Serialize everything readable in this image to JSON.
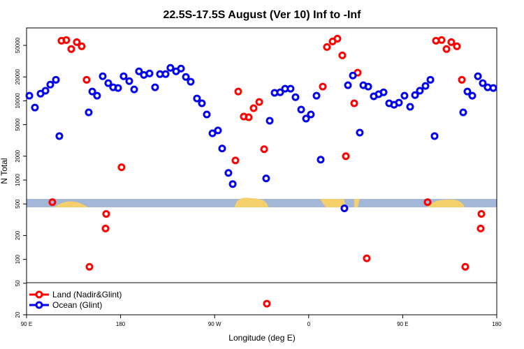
{
  "chart_data": {
    "type": "scatter",
    "title": "22.5S-17.5S August (Ver 10)   Inf to -Inf",
    "x_label": "Longitude (deg E)",
    "y_label": "N Total",
    "log_y": true,
    "legend_position": "bottom-left",
    "xlim": [
      90,
      540
    ],
    "xticks": [
      {
        "value": 90,
        "label": "90 E"
      },
      180,
      {
        "value": 270,
        "label": "90 W"
      },
      {
        "value": 360,
        "label": "0"
      },
      {
        "value": 450,
        "label": "90 E"
      },
      {
        "value": 540,
        "label": "180"
      }
    ],
    "ylim": [
      20,
      83000
    ],
    "yticks": [
      20,
      50,
      100,
      200,
      500,
      1000,
      2000,
      5000,
      10000,
      20000,
      50000
    ],
    "series": [
      {
        "name": "Land (Nadir&Glint)",
        "color": "#ff0000",
        "x": [
          114.7,
          123.4,
          128.1,
          132.8,
          138.1,
          142.8,
          147.5,
          150.2,
          165.6,
          166.2,
          180.9,
          289.9,
          292.6,
          297.9,
          302.6,
          307.3,
          312.7,
          317.4,
          320.0,
          373.5,
          377.5,
          382.9,
          387.5,
          392.2,
          395.6,
          403.6,
          406.9,
          415.6,
          473.8,
          481.8,
          487.2,
          491.9,
          496.5,
          501.9,
          506.6,
          509.9,
          524.6,
          525.3
        ],
        "values": [
          527,
          57200,
          58300,
          44900,
          54900,
          48600,
          18400,
          80.6,
          245,
          374,
          1450,
          1770,
          13100,
          6320,
          6200,
          8060,
          9660,
          2450,
          27.6,
          15100,
          47700,
          56000,
          60700,
          37400,
          2000,
          9290,
          22600,
          103,
          527,
          57200,
          58300,
          44900,
          54900,
          48600,
          18400,
          80.6,
          245,
          374
        ]
      },
      {
        "name": "Ocean (Glint)",
        "color": "#0000ee",
        "x": [
          92.7,
          98.0,
          103.4,
          108.1,
          112.7,
          118.1,
          121.4,
          149.5,
          152.9,
          157.5,
          162.9,
          168.2,
          172.9,
          177.6,
          182.9,
          188.3,
          193.0,
          197.6,
          202.3,
          207.7,
          213.0,
          217.7,
          223.1,
          227.7,
          233.1,
          237.8,
          242.5,
          247.1,
          253.1,
          257.8,
          262.5,
          267.9,
          273.2,
          277.2,
          283.2,
          287.3,
          319.3,
          322.7,
          327.4,
          332.7,
          337.4,
          342.7,
          347.4,
          352.8,
          357.5,
          362.1,
          367.5,
          371.5,
          394.2,
          397.6,
          402.3,
          408.9,
          412.3,
          417.0,
          422.3,
          427.0,
          431.7,
          437.0,
          441.7,
          446.4,
          451.7,
          457.1,
          461.8,
          466.4,
          471.8,
          476.5,
          480.5,
          507.9,
          511.9,
          516.6,
          522.0,
          526.6,
          531.3,
          536.7
        ],
        "values": [
          11600,
          8220,
          12300,
          13400,
          16000,
          18400,
          3590,
          7140,
          13100,
          11600,
          20400,
          16700,
          14800,
          14500,
          20400,
          17700,
          13900,
          23500,
          21200,
          22100,
          14800,
          21700,
          21700,
          26000,
          23500,
          25500,
          20000,
          17400,
          10700,
          9290,
          6720,
          3890,
          4230,
          2500,
          1230,
          891,
          1050,
          5600,
          12600,
          12800,
          14200,
          14200,
          11100,
          7740,
          5960,
          6720,
          11600,
          1810,
          440,
          15700,
          20800,
          3970,
          15700,
          15100,
          11400,
          12100,
          12800,
          9290,
          8910,
          9470,
          11600,
          8400,
          11800,
          13400,
          15400,
          18400,
          3590,
          7140,
          13100,
          11600,
          20400,
          16700,
          14800,
          14500
        ]
      }
    ]
  }
}
